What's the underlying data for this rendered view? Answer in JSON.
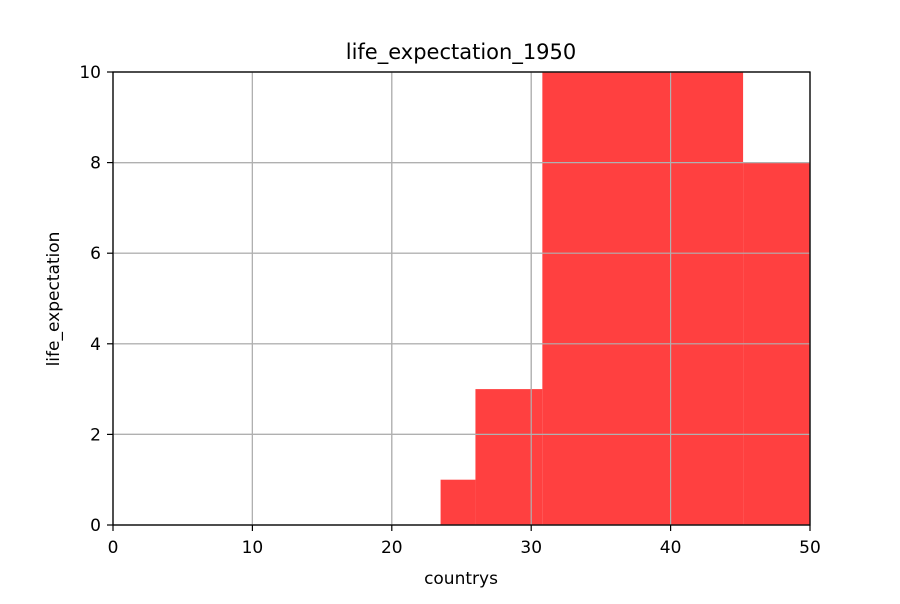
{
  "chart_data": {
    "type": "histogram",
    "title": "life_expectation_1950",
    "xlabel": "countrys",
    "ylabel": "life_expectation",
    "xlim": [
      0,
      50
    ],
    "ylim": [
      0,
      10
    ],
    "x_ticks": [
      0,
      10,
      20,
      30,
      40,
      50
    ],
    "y_ticks": [
      0,
      2,
      4,
      6,
      8,
      10
    ],
    "grid": true,
    "legend": "none",
    "bar_color": "#ff4040",
    "bins": [
      {
        "x0": 23.5,
        "x1": 26.0,
        "count": 1
      },
      {
        "x0": 26.0,
        "x1": 30.8,
        "count": 3
      },
      {
        "x0": 30.8,
        "x1": 45.2,
        "count": 10
      },
      {
        "x0": 45.2,
        "x1": 50.0,
        "count": 8
      }
    ]
  }
}
